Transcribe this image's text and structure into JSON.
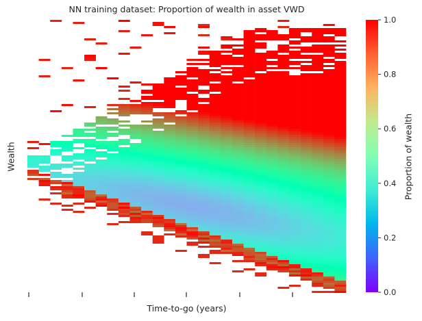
{
  "chart_data": {
    "type": "heatmap",
    "title": "NN training dataset: Proportion of wealth in asset VWD",
    "xlabel": "Time-to-go (years)",
    "ylabel": "Wealth",
    "colorbar": {
      "label": "Proportion of wealth",
      "colormap": "rainbow",
      "range": [
        0.0,
        1.0
      ],
      "ticks": [
        "0.0",
        "0.2",
        "0.4",
        "0.6",
        "0.8",
        "1.0"
      ]
    },
    "x_tick_labels_visible": false,
    "y_tick_labels_visible": false,
    "grid": false,
    "num_time_columns": 28,
    "summary": "Proportion in VWD is about 0.35-0.45 in the central wealth band; it rises toward 1.0 at high wealth and at the lowest wealth levels as time-to-go increases, and dips to about 0.25 in the middle band around the center of the horizon."
  }
}
